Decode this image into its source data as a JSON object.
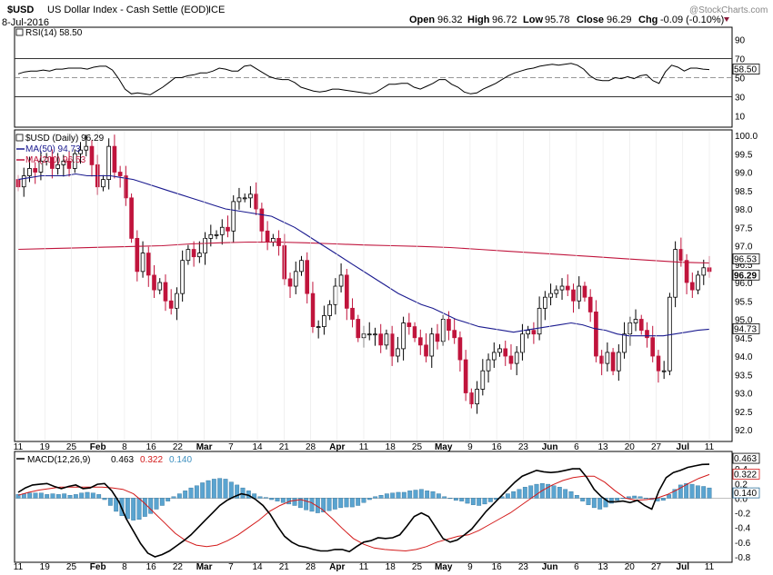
{
  "header": {
    "symbol": "$USD",
    "name": "US Dollar Index - Cash Settle (EOD)",
    "exchange": "ICE",
    "date": "8-Jul-2016",
    "watermark": "@StockCharts.com",
    "ohlc": {
      "open_label": "Open",
      "open": "96.32",
      "high_label": "High",
      "high": "96.72",
      "low_label": "Low",
      "low": "95.78",
      "close_label": "Close",
      "close": "96.29",
      "chg_label": "Chg",
      "chg": "-0.09 (-0.10%)"
    }
  },
  "chart_data": [
    {
      "type": "line",
      "title": "RSI(14) 58.50",
      "legend": "RSI(14) 58.50",
      "ylim": [
        0,
        100
      ],
      "ticks": [
        "90",
        "70",
        "50",
        "30",
        "10"
      ],
      "tick_values": [
        90,
        70,
        50,
        30,
        10
      ],
      "reference_lines": [
        70,
        50,
        30
      ],
      "last_value_label": "58.50",
      "last_value": 58.5,
      "values": [
        54,
        56,
        57,
        57,
        58,
        57,
        59,
        59,
        60,
        60,
        60,
        59,
        61,
        62,
        62,
        58,
        49,
        38,
        33,
        34,
        33,
        32,
        36,
        40,
        45,
        50,
        50,
        52,
        53,
        55,
        55,
        57,
        60,
        59,
        57,
        57,
        62,
        63,
        59,
        55,
        51,
        49,
        48,
        48,
        45,
        40,
        38,
        36,
        35,
        36,
        38,
        38,
        37,
        36,
        35,
        34,
        33,
        35,
        39,
        43,
        43,
        44,
        44,
        40,
        38,
        41,
        44,
        48,
        48,
        43,
        40,
        35,
        33,
        34,
        38,
        41,
        44,
        48,
        52,
        55,
        57,
        59,
        60,
        62,
        63,
        64,
        63,
        64,
        65,
        63,
        59,
        52,
        48,
        47,
        47,
        50,
        49,
        51,
        49,
        52,
        53,
        47,
        44,
        56,
        63,
        61,
        57,
        60,
        60,
        59,
        58.5
      ]
    },
    {
      "type": "candlestick",
      "title": "$USD (Daily) 96.29",
      "legend": [
        "$USD (Daily) 96.29",
        "MA(50) 94.73",
        "MA(200) 96.53"
      ],
      "ylim": [
        92,
        100
      ],
      "y_ticks": [
        "100.0",
        "99.5",
        "99.0",
        "98.5",
        "98.0",
        "97.5",
        "97.0",
        "96.5",
        "96.0",
        "95.5",
        "95.0",
        "94.5",
        "94.0",
        "93.5",
        "93.0",
        "92.5",
        "92.0"
      ],
      "y_tick_values": [
        100,
        99.5,
        99,
        98.5,
        98,
        97.5,
        97,
        96.5,
        96,
        95.5,
        95,
        94.5,
        94,
        93.5,
        93,
        92.5,
        92
      ],
      "x_labels": [
        "11",
        "19",
        "25",
        "Feb",
        "8",
        "16",
        "22",
        "Mar",
        "7",
        "14",
        "21",
        "28",
        "Apr",
        "11",
        "18",
        "25",
        "May",
        "9",
        "16",
        "23",
        "Jun",
        "6",
        "13",
        "20",
        "27",
        "Jul",
        "11"
      ],
      "x_label_bold": [
        "Feb",
        "Mar",
        "Apr",
        "May",
        "Jun",
        "Jul"
      ],
      "closes": [
        98.6,
        98.9,
        99.1,
        99.0,
        99.3,
        99.4,
        99.1,
        99.2,
        99.3,
        99.1,
        99.5,
        99.6,
        99.7,
        99.2,
        98.6,
        98.8,
        99.7,
        99.0,
        98.9,
        98.3,
        97.2,
        96.3,
        96.8,
        96.2,
        95.8,
        96.0,
        95.5,
        95.3,
        95.7,
        96.6,
        96.9,
        96.7,
        96.8,
        97.2,
        97.3,
        97.3,
        97.5,
        97.4,
        98.2,
        98.3,
        98.3,
        98.4,
        98.0,
        97.4,
        97.1,
        97.2,
        97.0,
        96.1,
        95.9,
        96.3,
        96.6,
        95.7,
        94.8,
        94.8,
        95.1,
        95.4,
        95.9,
        96.2,
        95.3,
        95.0,
        94.5,
        94.6,
        94.6,
        94.6,
        94.3,
        94.6,
        94.0,
        94.2,
        94.9,
        94.8,
        94.5,
        94.3,
        94.0,
        94.6,
        94.4,
        95.0,
        94.7,
        94.5,
        93.9,
        93.0,
        92.7,
        93.1,
        93.6,
        93.9,
        94.1,
        94.2,
        94.0,
        93.8,
        94.1,
        94.6,
        94.7,
        94.6,
        95.3,
        95.6,
        95.7,
        95.8,
        95.9,
        95.8,
        95.5,
        95.9,
        95.6,
        95.2,
        94.0,
        93.8,
        94.1,
        93.6,
        94.1,
        94.6,
        94.9,
        95.0,
        94.7,
        94.5,
        94.0,
        93.6,
        93.6,
        95.6,
        96.9,
        96.6,
        96.0,
        95.8,
        96.2,
        96.4,
        96.3
      ],
      "ma50": [
        98.8,
        98.85,
        98.9,
        98.9,
        98.9,
        98.95,
        98.9,
        98.9,
        98.9,
        98.85,
        98.8,
        98.7,
        98.6,
        98.5,
        98.4,
        98.3,
        98.2,
        98.1,
        98.0,
        97.95,
        97.9,
        97.85,
        97.8,
        97.65,
        97.5,
        97.3,
        97.1,
        96.9,
        96.7,
        96.5,
        96.3,
        96.1,
        95.9,
        95.7,
        95.55,
        95.4,
        95.3,
        95.15,
        95.0,
        94.9,
        94.8,
        94.75,
        94.7,
        94.65,
        94.7,
        94.75,
        94.8,
        94.85,
        94.9,
        94.85,
        94.75,
        94.7,
        94.6,
        94.55,
        94.55,
        94.55,
        94.55,
        94.6,
        94.65,
        94.7,
        94.73
      ],
      "ma200": [
        96.9,
        96.92,
        96.94,
        96.96,
        96.98,
        97.0,
        97.05,
        97.08,
        97.1,
        97.1,
        97.08,
        97.05,
        97.02,
        97.0,
        96.98,
        96.95,
        96.9,
        96.85,
        96.8,
        96.75,
        96.7,
        96.65,
        96.6,
        96.55,
        96.53
      ],
      "ma_labels": [
        "96.53",
        "94.73"
      ],
      "ma_values": [
        96.53,
        94.73
      ],
      "last_price_label": "96.29",
      "last_price": 96.29
    },
    {
      "type": "bar+line",
      "title": "MACD(12,26,9) 0.463, 0.322, 0.140",
      "legend": [
        "MACD(12,26,9)",
        "0.463",
        "0.322",
        "0.140"
      ],
      "ylim": [
        -0.85,
        0.6
      ],
      "ticks": [
        "0.4",
        "0.2",
        "0.0",
        "-0.2",
        "-0.4",
        "-0.6",
        "-0.8"
      ],
      "tick_values": [
        0.4,
        0.2,
        0,
        -0.2,
        -0.4,
        -0.6,
        -0.8
      ],
      "last_value_labels": [
        "0.463",
        "0.322",
        "0.140"
      ],
      "last_values": [
        0.463,
        0.322,
        0.14
      ],
      "histogram": [
        0.05,
        0.06,
        0.07,
        0.07,
        0.07,
        0.05,
        0.06,
        0.05,
        0.06,
        0.04,
        0.05,
        0.07,
        0.08,
        0.07,
        0.05,
        -0.02,
        -0.1,
        -0.18,
        -0.24,
        -0.28,
        -0.3,
        -0.29,
        -0.25,
        -0.21,
        -0.15,
        -0.1,
        -0.04,
        0.02,
        0.06,
        0.1,
        0.14,
        0.17,
        0.21,
        0.24,
        0.26,
        0.27,
        0.26,
        0.22,
        0.18,
        0.14,
        0.1,
        0.06,
        0.02,
        0.01,
        -0.02,
        -0.04,
        -0.06,
        -0.08,
        -0.1,
        -0.13,
        -0.16,
        -0.18,
        -0.2,
        -0.19,
        -0.17,
        -0.15,
        -0.13,
        -0.12,
        -0.12,
        -0.1,
        -0.06,
        -0.02,
        0.02,
        0.04,
        0.06,
        0.07,
        0.08,
        0.08,
        0.1,
        0.11,
        0.12,
        0.1,
        0.09,
        0.06,
        0.02,
        0.0,
        -0.03,
        -0.04,
        -0.07,
        -0.09,
        -0.1,
        -0.08,
        -0.05,
        -0.02,
        0.02,
        0.06,
        0.09,
        0.12,
        0.15,
        0.17,
        0.19,
        0.2,
        0.19,
        0.17,
        0.15,
        0.12,
        0.09,
        0.04,
        -0.04,
        -0.09,
        -0.13,
        -0.15,
        -0.12,
        -0.07,
        -0.03,
        0.0,
        0.02,
        0.03,
        0.02,
        0.0,
        -0.02,
        -0.04,
        -0.03,
        0.05,
        0.12,
        0.18,
        0.2,
        0.19,
        0.17,
        0.16,
        0.14
      ],
      "macd": [
        0.08,
        0.14,
        0.18,
        0.19,
        0.2,
        0.16,
        0.13,
        0.16,
        0.18,
        0.13,
        0.14,
        0.19,
        0.2,
        0.1,
        -0.05,
        -0.28,
        -0.45,
        -0.62,
        -0.75,
        -0.8,
        -0.77,
        -0.72,
        -0.65,
        -0.58,
        -0.5,
        -0.4,
        -0.3,
        -0.2,
        -0.1,
        -0.03,
        0.02,
        0.06,
        0.04,
        -0.02,
        -0.1,
        -0.22,
        -0.38,
        -0.52,
        -0.6,
        -0.65,
        -0.67,
        -0.7,
        -0.72,
        -0.72,
        -0.7,
        -0.7,
        -0.73,
        -0.66,
        -0.6,
        -0.58,
        -0.54,
        -0.55,
        -0.54,
        -0.5,
        -0.38,
        -0.25,
        -0.2,
        -0.25,
        -0.4,
        -0.55,
        -0.6,
        -0.57,
        -0.5,
        -0.42,
        -0.3,
        -0.18,
        -0.08,
        0.02,
        0.12,
        0.22,
        0.3,
        0.34,
        0.38,
        0.36,
        0.35,
        0.36,
        0.38,
        0.4,
        0.4,
        0.28,
        0.12,
        0.02,
        -0.05,
        -0.05,
        -0.04,
        -0.06,
        -0.03,
        -0.1,
        -0.15,
        0.1,
        0.28,
        0.35,
        0.38,
        0.42,
        0.44,
        0.46,
        0.463
      ],
      "signal": [
        0.04,
        0.08,
        0.11,
        0.13,
        0.15,
        0.15,
        0.15,
        0.15,
        0.15,
        0.14,
        0.12,
        0.06,
        -0.06,
        -0.2,
        -0.34,
        -0.48,
        -0.58,
        -0.64,
        -0.66,
        -0.64,
        -0.58,
        -0.5,
        -0.4,
        -0.3,
        -0.18,
        -0.1,
        -0.04,
        -0.02,
        -0.06,
        -0.15,
        -0.28,
        -0.42,
        -0.55,
        -0.63,
        -0.68,
        -0.7,
        -0.71,
        -0.72,
        -0.7,
        -0.66,
        -0.6,
        -0.56,
        -0.52,
        -0.5,
        -0.44,
        -0.36,
        -0.28,
        -0.2,
        -0.1,
        0.0,
        0.1,
        0.18,
        0.24,
        0.28,
        0.3,
        0.3,
        0.22,
        0.1,
        0.0,
        -0.03,
        -0.02,
        0.0,
        0.05,
        0.12,
        0.2,
        0.27,
        0.322
      ]
    }
  ]
}
